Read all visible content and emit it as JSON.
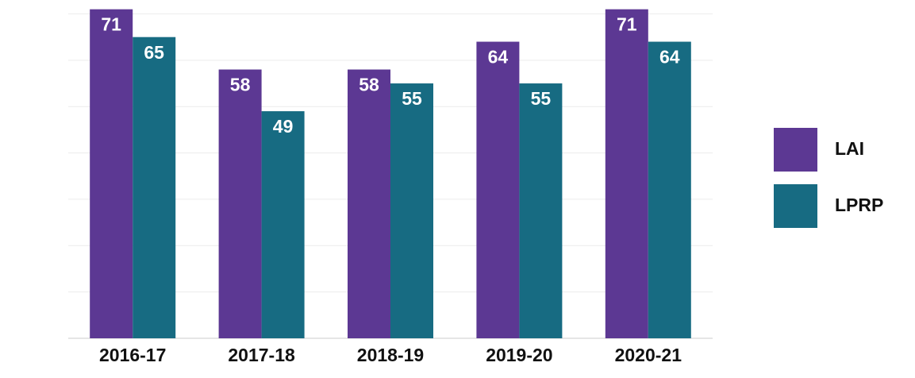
{
  "chart_data": {
    "type": "bar",
    "categories": [
      "2016-17",
      "2017-18",
      "2018-19",
      "2019-20",
      "2020-21"
    ],
    "series": [
      {
        "name": "LAI",
        "color": "#5c3893",
        "values": [
          71,
          58,
          58,
          64,
          71
        ]
      },
      {
        "name": "LPRP",
        "color": "#176b82",
        "values": [
          65,
          49,
          55,
          55,
          64
        ]
      }
    ],
    "ylim": [
      0,
      73
    ],
    "yticks": [
      0,
      10,
      20,
      30,
      40,
      50,
      60,
      70
    ],
    "grid": true,
    "legend": "right"
  }
}
